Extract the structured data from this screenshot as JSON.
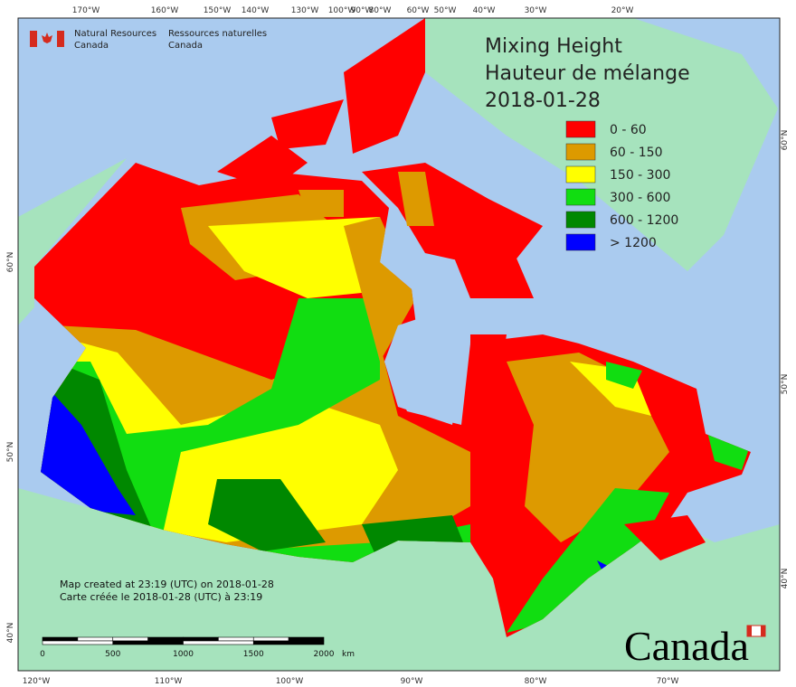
{
  "header": {
    "org_en": [
      "Natural Resources",
      "Canada"
    ],
    "org_fr": [
      "Ressources naturelles",
      "Canada"
    ]
  },
  "title": [
    "Mixing Height",
    "Hauteur de mélange",
    "2018-01-28"
  ],
  "legend": [
    {
      "label": "0 - 60",
      "color": "#ff0000"
    },
    {
      "label": "60 - 150",
      "color": "#dd9a00"
    },
    {
      "label": "150 - 300",
      "color": "#ffff00"
    },
    {
      "label": "300 - 600",
      "color": "#11dd11"
    },
    {
      "label": "600 - 1200",
      "color": "#008800"
    },
    {
      "label": "> 1200",
      "color": "#0000ff"
    }
  ],
  "graticule": {
    "top": [
      "170°W",
      "160°W",
      "150°W",
      "140°W",
      "130°W",
      "100°W",
      "90°W",
      "80°W",
      "60°W",
      "50°W",
      "40°W",
      "30°W",
      "20°W"
    ],
    "bottom": [
      "120°W",
      "110°W",
      "100°W",
      "90°W",
      "80°W",
      "70°W"
    ],
    "left": [
      "60°N",
      "50°N",
      "40°N"
    ],
    "right": [
      "60°N",
      "50°N",
      "40°N"
    ]
  },
  "credits": [
    "Map created at 23:19 (UTC) on 2018-01-28",
    "Carte créée le 2018-01-28 (UTC) à 23:19"
  ],
  "scale": {
    "labels": [
      0,
      500,
      1000,
      1500,
      2000
    ],
    "unit": "km"
  },
  "wordmark": "Canada"
}
